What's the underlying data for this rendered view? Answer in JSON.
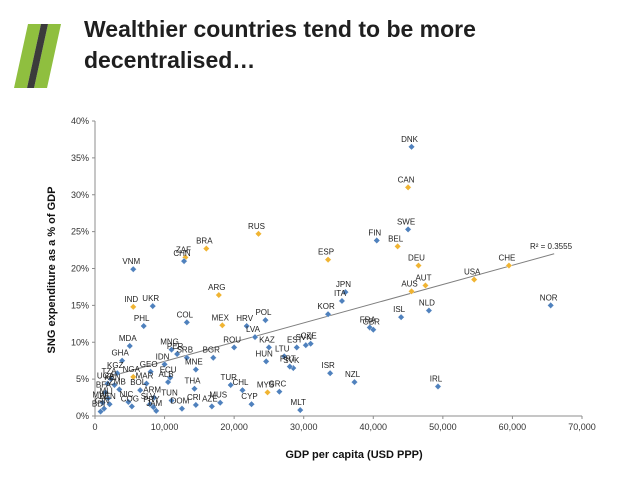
{
  "slide": {
    "title": "Wealthier countries tend to be more decentralised…",
    "logo_colors": [
      "#8fbf3f",
      "#3b3b3b"
    ]
  },
  "chart_data": {
    "type": "scatter",
    "title": "",
    "xlabel": "GDP per capita (USD PPP)",
    "ylabel": "SNG expenditure as a % of GDP",
    "xlim": [
      0,
      70000
    ],
    "ylim": [
      0,
      40
    ],
    "xticks": [
      0,
      10000,
      20000,
      30000,
      40000,
      50000,
      60000,
      70000
    ],
    "xtick_labels": [
      "0",
      "10,000",
      "20,000",
      "30,000",
      "40,000",
      "50,000",
      "60,000",
      "70,000"
    ],
    "yticks": [
      0,
      5,
      10,
      15,
      20,
      25,
      30,
      35,
      40
    ],
    "ytick_labels": [
      "0%",
      "5%",
      "10%",
      "15%",
      "20%",
      "25%",
      "30%",
      "35%",
      "40%"
    ],
    "grid": false,
    "colors": {
      "unitary": "#4f81bd",
      "federal": "#f0b432",
      "trend": "#7f7f7f"
    },
    "r2_label": "R² = 0.3555",
    "trendline": {
      "x": [
        1500,
        66000
      ],
      "y": [
        5.2,
        22
      ]
    },
    "points": [
      {
        "label": "DNK",
        "x": 45500,
        "y": 36.5,
        "group": "unitary"
      },
      {
        "label": "CAN",
        "x": 45000,
        "y": 31.0,
        "group": "federal"
      },
      {
        "label": "SWE",
        "x": 45000,
        "y": 25.3,
        "group": "unitary"
      },
      {
        "label": "FIN",
        "x": 40500,
        "y": 23.8,
        "group": "unitary"
      },
      {
        "label": "BEL",
        "x": 43500,
        "y": 23.0,
        "group": "federal"
      },
      {
        "label": "RUS",
        "x": 23500,
        "y": 24.7,
        "group": "federal"
      },
      {
        "label": "BRA",
        "x": 16000,
        "y": 22.7,
        "group": "federal"
      },
      {
        "label": "ZAF",
        "x": 13000,
        "y": 21.5,
        "group": "federal"
      },
      {
        "label": "CHN",
        "x": 12800,
        "y": 21.0,
        "group": "unitary"
      },
      {
        "label": "ESP",
        "x": 33500,
        "y": 21.2,
        "group": "federal"
      },
      {
        "label": "DEU",
        "x": 46500,
        "y": 20.4,
        "group": "federal"
      },
      {
        "label": "CHE",
        "x": 59500,
        "y": 20.4,
        "group": "federal"
      },
      {
        "label": "USA",
        "x": 54500,
        "y": 18.5,
        "group": "federal"
      },
      {
        "label": "AUT",
        "x": 47500,
        "y": 17.7,
        "group": "federal"
      },
      {
        "label": "AUS",
        "x": 45500,
        "y": 16.9,
        "group": "federal"
      },
      {
        "label": "JPN",
        "x": 36000,
        "y": 16.8,
        "group": "unitary"
      },
      {
        "label": "ITA",
        "x": 35500,
        "y": 15.6,
        "group": "unitary"
      },
      {
        "label": "KOR",
        "x": 33500,
        "y": 13.8,
        "group": "unitary"
      },
      {
        "label": "NLD",
        "x": 48000,
        "y": 14.3,
        "group": "unitary"
      },
      {
        "label": "ISL",
        "x": 44000,
        "y": 13.4,
        "group": "unitary"
      },
      {
        "label": "FRA",
        "x": 39500,
        "y": 12.0,
        "group": "unitary"
      },
      {
        "label": "GBR",
        "x": 40000,
        "y": 11.7,
        "group": "unitary"
      },
      {
        "label": "NOR",
        "x": 65500,
        "y": 15.0,
        "group": "unitary"
      },
      {
        "label": "VNM",
        "x": 5500,
        "y": 19.9,
        "group": "unitary"
      },
      {
        "label": "ARG",
        "x": 17800,
        "y": 16.4,
        "group": "federal"
      },
      {
        "label": "IND",
        "x": 5500,
        "y": 14.8,
        "group": "federal"
      },
      {
        "label": "UKR",
        "x": 8300,
        "y": 14.9,
        "group": "unitary"
      },
      {
        "label": "PHL",
        "x": 7000,
        "y": 12.2,
        "group": "unitary"
      },
      {
        "label": "COL",
        "x": 13200,
        "y": 12.7,
        "group": "unitary"
      },
      {
        "label": "MEX",
        "x": 18300,
        "y": 12.3,
        "group": "federal"
      },
      {
        "label": "HRV",
        "x": 21800,
        "y": 12.2,
        "group": "unitary"
      },
      {
        "label": "POL",
        "x": 24500,
        "y": 13.0,
        "group": "unitary"
      },
      {
        "label": "LVA",
        "x": 23000,
        "y": 10.7,
        "group": "unitary"
      },
      {
        "label": "ROU",
        "x": 20000,
        "y": 9.3,
        "group": "unitary"
      },
      {
        "label": "KAZ",
        "x": 25000,
        "y": 9.3,
        "group": "unitary"
      },
      {
        "label": "EST",
        "x": 29000,
        "y": 9.3,
        "group": "unitary"
      },
      {
        "label": "SVN",
        "x": 30300,
        "y": 9.6,
        "group": "unitary"
      },
      {
        "label": "CZE",
        "x": 31000,
        "y": 9.8,
        "group": "unitary"
      },
      {
        "label": "LTU",
        "x": 27200,
        "y": 8.1,
        "group": "unitary"
      },
      {
        "label": "HUN",
        "x": 24600,
        "y": 7.4,
        "group": "unitary"
      },
      {
        "label": "SVK",
        "x": 28500,
        "y": 6.5,
        "group": "unitary"
      },
      {
        "label": "PRT",
        "x": 28000,
        "y": 6.7,
        "group": "unitary"
      },
      {
        "label": "ISR",
        "x": 33800,
        "y": 5.8,
        "group": "unitary"
      },
      {
        "label": "NZL",
        "x": 37300,
        "y": 4.6,
        "group": "unitary"
      },
      {
        "label": "IRL",
        "x": 49300,
        "y": 4.0,
        "group": "unitary"
      },
      {
        "label": "MDA",
        "x": 5000,
        "y": 9.5,
        "group": "unitary"
      },
      {
        "label": "MNG",
        "x": 11000,
        "y": 9.0,
        "group": "unitary"
      },
      {
        "label": "PER",
        "x": 11800,
        "y": 8.4,
        "group": "unitary"
      },
      {
        "label": "SRB",
        "x": 13200,
        "y": 7.9,
        "group": "unitary"
      },
      {
        "label": "BGR",
        "x": 17000,
        "y": 7.9,
        "group": "unitary"
      },
      {
        "label": "IDN",
        "x": 10000,
        "y": 7.0,
        "group": "unitary"
      },
      {
        "label": "MNE",
        "x": 14500,
        "y": 6.3,
        "group": "unitary"
      },
      {
        "label": "GHA",
        "x": 3900,
        "y": 7.5,
        "group": "unitary"
      },
      {
        "label": "KGZ",
        "x": 3200,
        "y": 5.8,
        "group": "unitary"
      },
      {
        "label": "NGA",
        "x": 5500,
        "y": 5.3,
        "group": "federal"
      },
      {
        "label": "GEO",
        "x": 8000,
        "y": 6.0,
        "group": "unitary"
      },
      {
        "label": "ECU",
        "x": 10800,
        "y": 5.2,
        "group": "unitary"
      },
      {
        "label": "MAR",
        "x": 7400,
        "y": 4.4,
        "group": "unitary"
      },
      {
        "label": "ALB",
        "x": 10500,
        "y": 4.6,
        "group": "unitary"
      },
      {
        "label": "THA",
        "x": 14300,
        "y": 3.7,
        "group": "unitary"
      },
      {
        "label": "TUR",
        "x": 19500,
        "y": 4.2,
        "group": "unitary"
      },
      {
        "label": "CHL",
        "x": 21200,
        "y": 3.5,
        "group": "unitary"
      },
      {
        "label": "MYS",
        "x": 24800,
        "y": 3.2,
        "group": "federal"
      },
      {
        "label": "GRC",
        "x": 26500,
        "y": 3.3,
        "group": "unitary"
      },
      {
        "label": "CYP",
        "x": 22500,
        "y": 1.6,
        "group": "unitary"
      },
      {
        "label": "MUS",
        "x": 18000,
        "y": 1.8,
        "group": "unitary"
      },
      {
        "label": "CRI",
        "x": 14500,
        "y": 1.5,
        "group": "unitary"
      },
      {
        "label": "AZE",
        "x": 16800,
        "y": 1.3,
        "group": "unitary"
      },
      {
        "label": "DOM",
        "x": 12500,
        "y": 1.0,
        "group": "unitary"
      },
      {
        "label": "MLT",
        "x": 29500,
        "y": 0.8,
        "group": "unitary"
      },
      {
        "label": "TUN",
        "x": 11000,
        "y": 2.1,
        "group": "unitary"
      },
      {
        "label": "ARM",
        "x": 8500,
        "y": 2.5,
        "group": "unitary"
      },
      {
        "label": "SLV",
        "x": 7900,
        "y": 1.6,
        "group": "unitary"
      },
      {
        "label": "PRY",
        "x": 8400,
        "y": 1.2,
        "group": "unitary"
      },
      {
        "label": "BOL",
        "x": 6500,
        "y": 3.5,
        "group": "unitary"
      },
      {
        "label": "COG",
        "x": 5300,
        "y": 1.3,
        "group": "unitary"
      },
      {
        "label": "JAM",
        "x": 8800,
        "y": 0.7,
        "group": "unitary"
      },
      {
        "label": "TZA",
        "x": 2300,
        "y": 5.0,
        "group": "unitary"
      },
      {
        "label": "KEN",
        "x": 2800,
        "y": 4.2,
        "group": "unitary"
      },
      {
        "label": "UGA",
        "x": 1800,
        "y": 4.4,
        "group": "unitary"
      },
      {
        "label": "ZMB",
        "x": 3500,
        "y": 3.6,
        "group": "unitary"
      },
      {
        "label": "BFA",
        "x": 1500,
        "y": 3.2,
        "group": "unitary"
      },
      {
        "label": "MLI",
        "x": 1900,
        "y": 2.4,
        "group": "unitary"
      },
      {
        "label": "MWI",
        "x": 1100,
        "y": 1.8,
        "group": "unitary"
      },
      {
        "label": "BEN",
        "x": 2100,
        "y": 1.6,
        "group": "unitary"
      },
      {
        "label": "NIC",
        "x": 4800,
        "y": 1.9,
        "group": "unitary"
      },
      {
        "label": "GIN",
        "x": 1300,
        "y": 1.0,
        "group": "unitary"
      },
      {
        "label": "BDI",
        "x": 800,
        "y": 0.6,
        "group": "unitary"
      }
    ]
  }
}
